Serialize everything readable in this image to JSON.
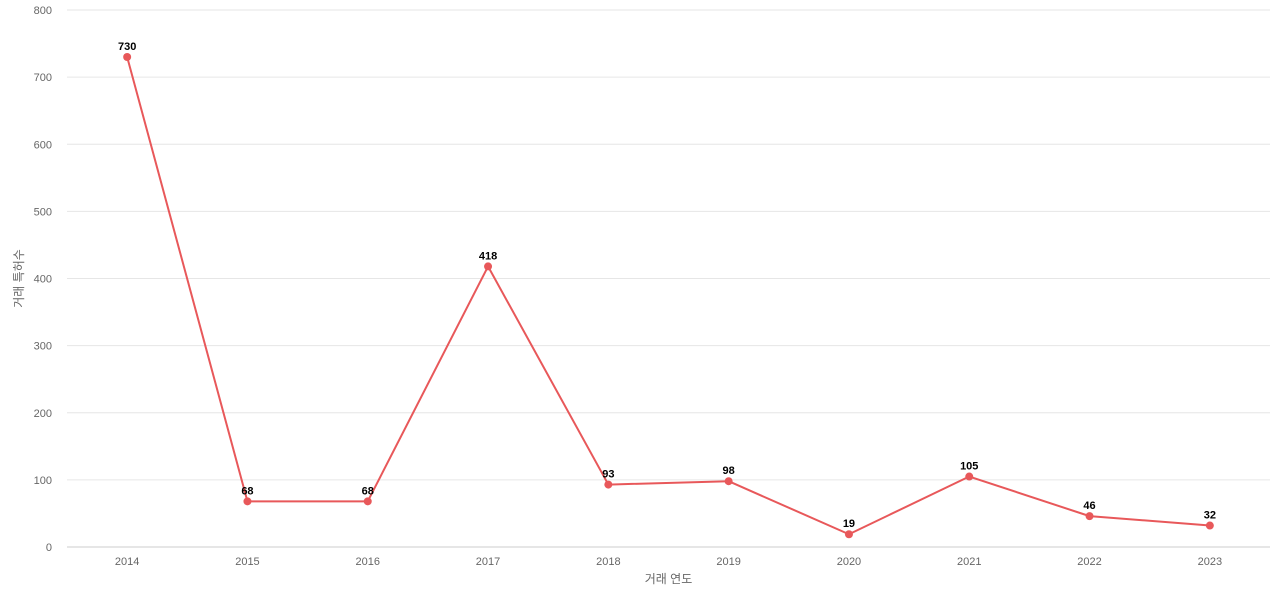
{
  "chart_data": {
    "type": "line",
    "categories": [
      "2014",
      "2015",
      "2016",
      "2017",
      "2018",
      "2019",
      "2020",
      "2021",
      "2022",
      "2023"
    ],
    "series": [
      {
        "values": [
          730,
          68,
          68,
          418,
          93,
          98,
          19,
          105,
          46,
          32
        ],
        "color": "#e8585a"
      }
    ],
    "xlabel": "거래 연도",
    "ylabel": "거래 특허수",
    "ylim": [
      0,
      800
    ],
    "yticks": [
      0,
      100,
      200,
      300,
      400,
      500,
      600,
      700,
      800
    ],
    "grid": true,
    "legend": "none",
    "data_labels": true
  }
}
